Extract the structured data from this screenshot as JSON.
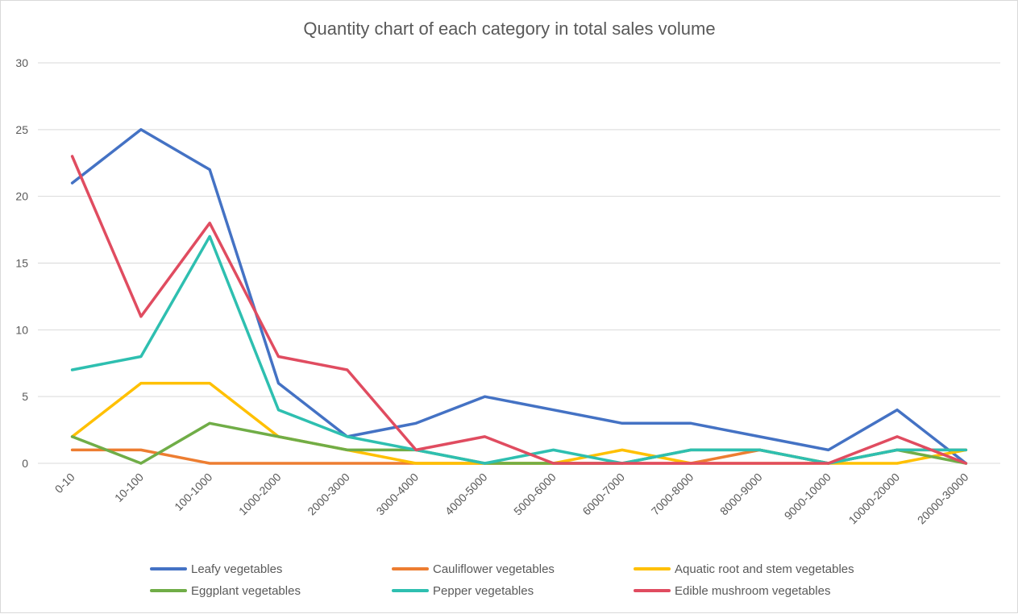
{
  "chart_data": {
    "type": "line",
    "title": "Quantity chart of each category in total sales volume",
    "xlabel": "",
    "ylabel": "",
    "categories": [
      "0-10",
      "10-100",
      "100-1000",
      "1000-2000",
      "2000-3000",
      "3000-4000",
      "4000-5000",
      "5000-6000",
      "6000-7000",
      "7000-8000",
      "8000-9000",
      "9000-10000",
      "10000-20000",
      "20000-30000"
    ],
    "ylim": [
      0,
      30
    ],
    "yticks": [
      0,
      5,
      10,
      15,
      20,
      25,
      30
    ],
    "grid": true,
    "legend_position": "bottom",
    "series": [
      {
        "name": "Leafy vegetables",
        "color": "#4472C4",
        "values": [
          21,
          25,
          22,
          6,
          2,
          3,
          5,
          4,
          3,
          3,
          2,
          1,
          4,
          0
        ]
      },
      {
        "name": "Cauliflower vegetables",
        "color": "#ED7D31",
        "values": [
          1,
          1,
          0,
          0,
          0,
          0,
          0,
          0,
          0,
          0,
          1,
          0,
          1,
          1
        ]
      },
      {
        "name": "Aquatic root and stem vegetables",
        "color": "#FFC000",
        "values": [
          2,
          6,
          6,
          2,
          1,
          0,
          0,
          0,
          1,
          0,
          0,
          0,
          0,
          1
        ]
      },
      {
        "name": "Eggplant vegetables",
        "color": "#70AD47",
        "values": [
          2,
          0,
          3,
          2,
          1,
          1,
          0,
          0,
          0,
          1,
          1,
          0,
          1,
          0
        ]
      },
      {
        "name": "Pepper vegetables",
        "color": "#2EBFB0",
        "values": [
          7,
          8,
          17,
          4,
          2,
          1,
          0,
          1,
          0,
          1,
          1,
          0,
          1,
          1
        ]
      },
      {
        "name": "Edible mushroom vegetables",
        "color": "#E04C60",
        "values": [
          23,
          11,
          18,
          8,
          7,
          1,
          2,
          0,
          0,
          0,
          0,
          0,
          2,
          0
        ]
      }
    ]
  }
}
